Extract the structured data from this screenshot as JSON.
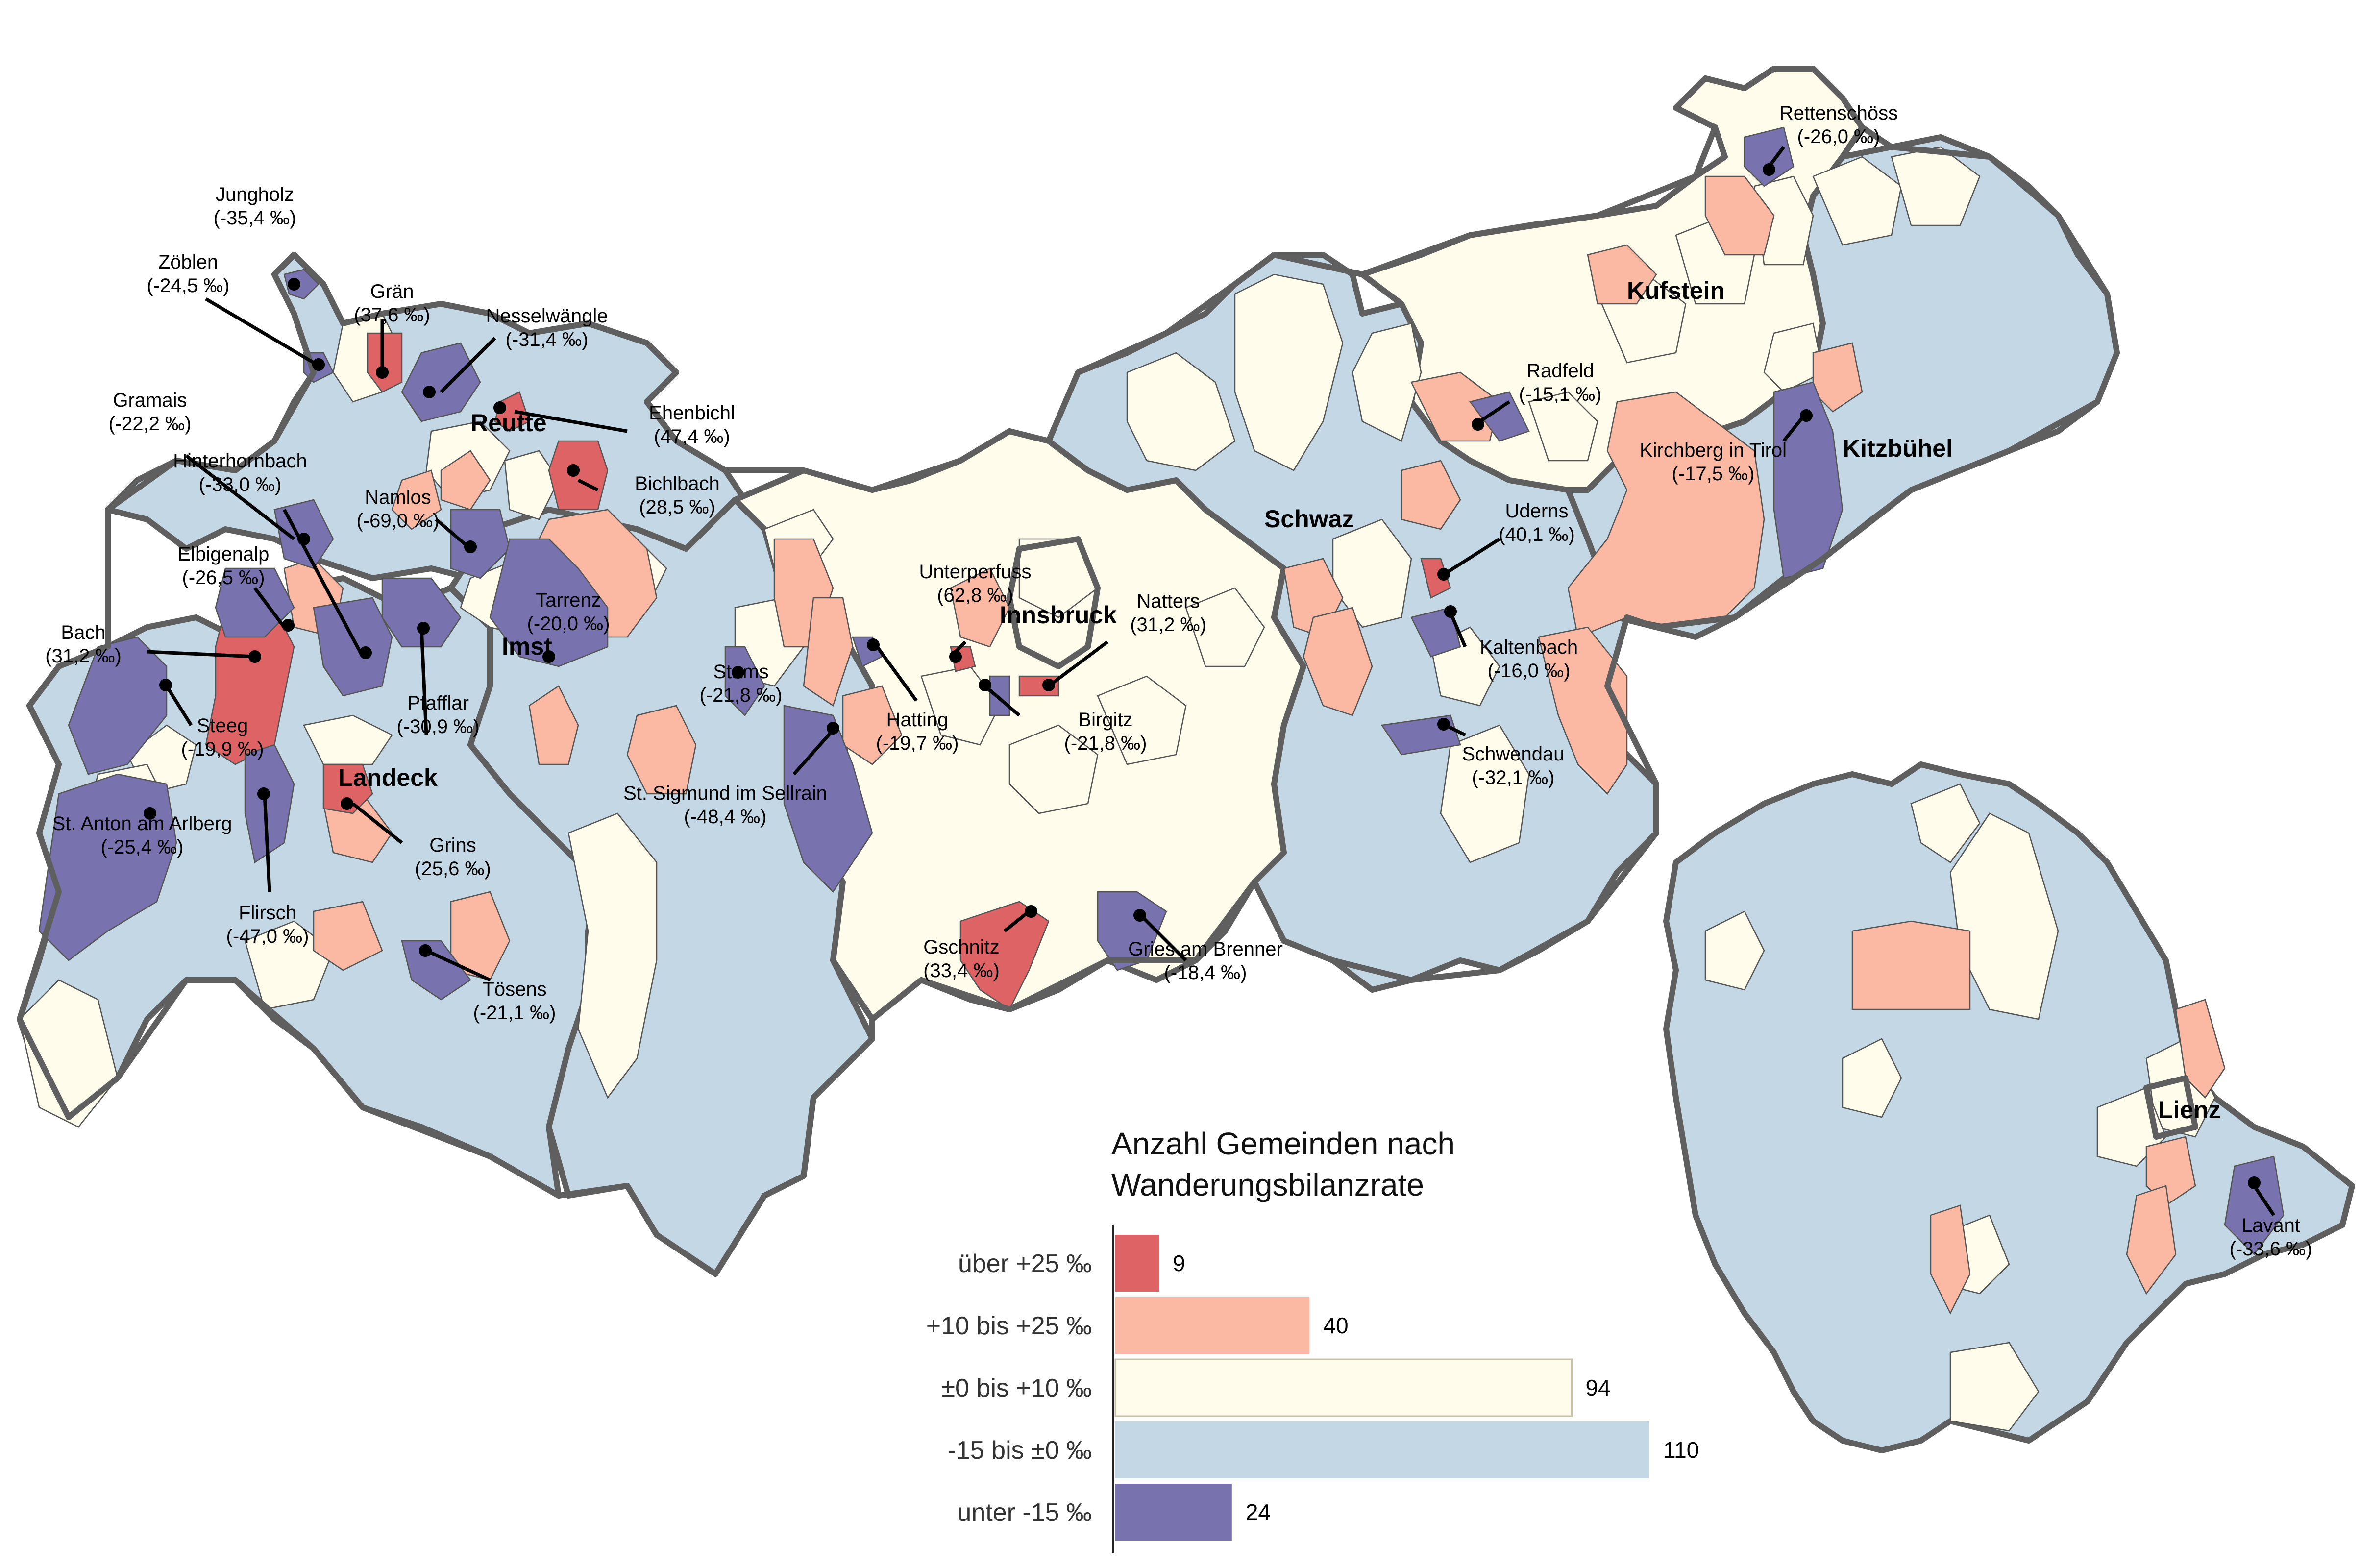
{
  "legend": {
    "title_line1": "Anzahl Gemeinden nach",
    "title_line2": "Wanderungsbilanzrate",
    "categories": [
      {
        "label": "über +25 ‰",
        "count": 9,
        "color": "#de6365"
      },
      {
        "label": "+10 bis +25 ‰",
        "count": 40,
        "color": "#fbb9a4"
      },
      {
        "label": "±0 bis +10 ‰",
        "count": 94,
        "color": "#fffcec"
      },
      {
        "label": "-15 bis ±0 ‰",
        "count": 110,
        "color": "#c3d8e4"
      },
      {
        "label": "unter -15 ‰",
        "count": 24,
        "color": "#7873ae"
      }
    ]
  },
  "chart_data": {
    "type": "bar",
    "categories": [
      "über +25 ‰",
      "+10 bis +25 ‰",
      "±0 bis +10 ‰",
      "-15 bis ±0 ‰",
      "unter -15 ‰"
    ],
    "values": [
      9,
      40,
      94,
      110,
      24
    ],
    "title": "Anzahl Gemeinden nach Wanderungsbilanzrate"
  },
  "districts": [
    {
      "name": "Reutte"
    },
    {
      "name": "Imst"
    },
    {
      "name": "Landeck"
    },
    {
      "name": "Innsbruck"
    },
    {
      "name": "Schwaz"
    },
    {
      "name": "Kufstein"
    },
    {
      "name": "Kitzbühel"
    },
    {
      "name": "Lienz"
    }
  ],
  "municipalities": [
    {
      "name": "Jungholz",
      "value": "(-35,4 ‰)"
    },
    {
      "name": "Zöblen",
      "value": "(-24,5 ‰)"
    },
    {
      "name": "Grän",
      "value": "(37,6 ‰)"
    },
    {
      "name": "Nesselwängle",
      "value": "(-31,4 ‰)"
    },
    {
      "name": "Ehenbichl",
      "value": "(47,4 ‰)"
    },
    {
      "name": "Gramais",
      "value": "(-22,2 ‰)"
    },
    {
      "name": "Hinterhornbach",
      "value": "(-33,0 ‰)"
    },
    {
      "name": "Bichlbach",
      "value": "(28,5 ‰)"
    },
    {
      "name": "Namlos",
      "value": "(-69,0 ‰)"
    },
    {
      "name": "Elbigenalp",
      "value": "(-26,5 ‰)"
    },
    {
      "name": "Tarrenz",
      "value": "(-20,0 ‰)"
    },
    {
      "name": "Bach",
      "value": "(31,2 ‰)"
    },
    {
      "name": "Pfafflar",
      "value": "(-30,9 ‰)"
    },
    {
      "name": "Steeg",
      "value": "(-19,9 ‰)"
    },
    {
      "name": "Stams",
      "value": "(-21,8 ‰)"
    },
    {
      "name": "St. Anton am Arlberg",
      "value": "(-25,4 ‰)"
    },
    {
      "name": "Grins",
      "value": "(25,6 ‰)"
    },
    {
      "name": "Flirsch",
      "value": "(-47,0 ‰)"
    },
    {
      "name": "Tösens",
      "value": "(-21,1 ‰)"
    },
    {
      "name": "St. Sigmund im Sellrain",
      "value": "(-48,4 ‰)"
    },
    {
      "name": "Unterperfuss",
      "value": "(62,8 ‰)"
    },
    {
      "name": "Natters",
      "value": "(31,2 ‰)"
    },
    {
      "name": "Hatting",
      "value": "(-19,7 ‰)"
    },
    {
      "name": "Birgitz",
      "value": "(-21,8 ‰)"
    },
    {
      "name": "Gschnitz",
      "value": "(33,4 ‰)"
    },
    {
      "name": "Gries am Brenner",
      "value": "(-18,4 ‰)"
    },
    {
      "name": "Radfeld",
      "value": "(-15,1 ‰)"
    },
    {
      "name": "Uderns",
      "value": "(40,1 ‰)"
    },
    {
      "name": "Kaltenbach",
      "value": "(-16,0 ‰)"
    },
    {
      "name": "Schwendau",
      "value": "(-32,1 ‰)"
    },
    {
      "name": "Rettenschöss",
      "value": "(-26,0 ‰)"
    },
    {
      "name": "Kirchberg in Tirol",
      "value": "(-17,5 ‰)"
    },
    {
      "name": "Lavant",
      "value": "(-33,6 ‰)"
    }
  ]
}
